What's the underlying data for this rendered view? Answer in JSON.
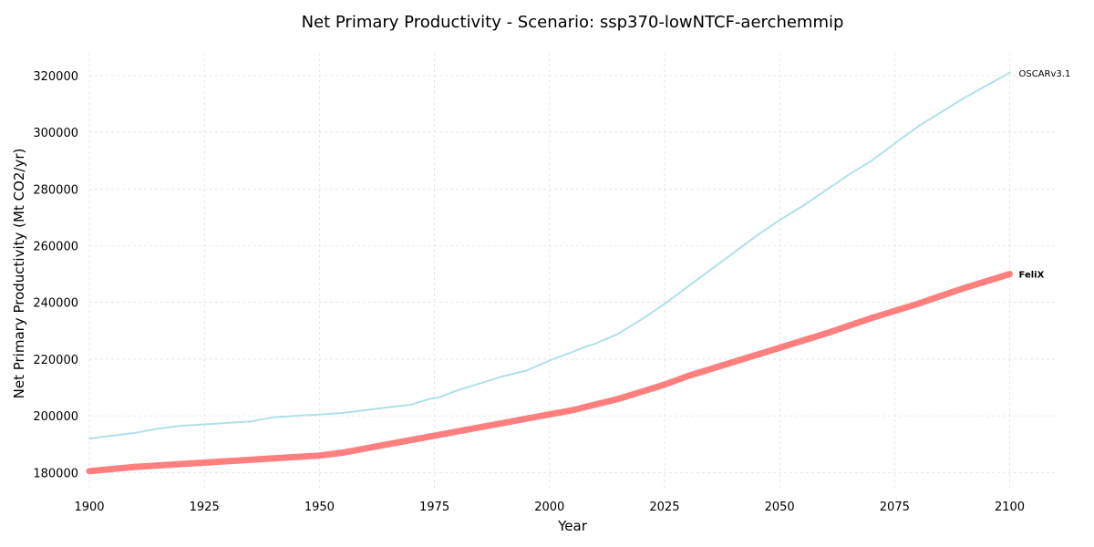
{
  "chart_data": {
    "type": "line",
    "title": "Net Primary Productivity - Scenario: ssp370-lowNTCF-aerchemmip",
    "xlabel": "Year",
    "ylabel": "Net Primary Productivity (Mt CO2/yr)",
    "xlim": [
      1900,
      2110
    ],
    "ylim": [
      174000,
      328000
    ],
    "xticks": [
      1900,
      1925,
      1950,
      1975,
      2000,
      2025,
      2050,
      2075,
      2100
    ],
    "yticks": [
      180000,
      200000,
      220000,
      240000,
      260000,
      280000,
      300000,
      320000
    ],
    "grid": true,
    "legend": "labels at line ends",
    "series": [
      {
        "name": "OSCARv3.1",
        "color": "#b0e0e8",
        "label_bold": false,
        "x": [
          1900,
          1905,
          1910,
          1915,
          1920,
          1925,
          1930,
          1935,
          1940,
          1945,
          1950,
          1955,
          1960,
          1965,
          1970,
          1972,
          1974,
          1976,
          1980,
          1985,
          1990,
          1995,
          2000,
          2005,
          2008,
          2010,
          2015,
          2020,
          2025,
          2030,
          2035,
          2040,
          2045,
          2050,
          2055,
          2060,
          2065,
          2070,
          2075,
          2080,
          2085,
          2090,
          2095,
          2100
        ],
        "y": [
          192000,
          193000,
          194000,
          195500,
          196500,
          197000,
          197500,
          198000,
          199500,
          200000,
          200500,
          201000,
          202000,
          203000,
          204000,
          205000,
          206000,
          206500,
          209000,
          211500,
          214000,
          216000,
          219500,
          222500,
          224500,
          225500,
          229000,
          234000,
          239500,
          245500,
          251500,
          257500,
          263500,
          269000,
          274000,
          279500,
          285000,
          290000,
          296000,
          302000,
          307000,
          312000,
          316500,
          321000
        ]
      },
      {
        "name": "FeliX",
        "color": "#ff7f7f",
        "label_bold": true,
        "x": [
          1900,
          1910,
          1920,
          1930,
          1940,
          1950,
          1955,
          1960,
          1965,
          1970,
          1975,
          1980,
          1985,
          1990,
          1995,
          2000,
          2005,
          2010,
          2015,
          2020,
          2025,
          2030,
          2040,
          2050,
          2060,
          2070,
          2080,
          2090,
          2100
        ],
        "y": [
          180500,
          182000,
          183000,
          184000,
          185000,
          186000,
          187000,
          188500,
          190000,
          191500,
          193000,
          194500,
          196000,
          197500,
          199000,
          200500,
          202000,
          204000,
          206000,
          208500,
          211000,
          214000,
          219000,
          224000,
          229000,
          234500,
          239500,
          245000,
          250000
        ]
      }
    ]
  }
}
